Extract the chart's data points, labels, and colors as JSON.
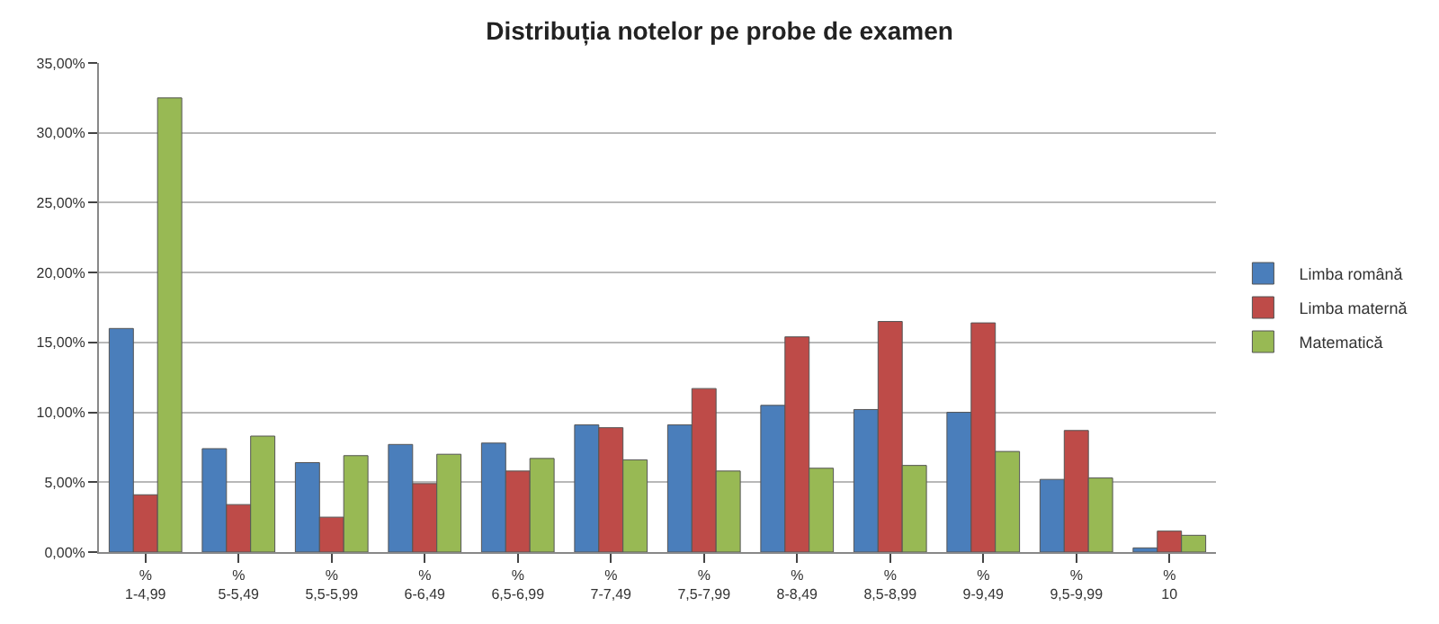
{
  "chart_data": {
    "type": "bar",
    "title": "Distribuția notelor pe probe de examen",
    "categories": [
      "%\n1-4,99",
      "%\n5-5,49",
      "%\n5,5-5,99",
      "%\n6-6,49",
      "%\n6,5-6,99",
      "%\n7-7,49",
      "%\n7,5-7,99",
      "%\n8-8,49",
      "%\n8,5-8,99",
      "%\n9-9,49",
      "%\n9,5-9,99",
      "%\n10"
    ],
    "series": [
      {
        "name": "Limba română",
        "color": "#4a7ebb",
        "values": [
          16.0,
          7.4,
          6.4,
          7.7,
          7.8,
          9.1,
          9.1,
          10.5,
          10.2,
          10.0,
          5.2,
          0.3
        ]
      },
      {
        "name": "Limba maternă",
        "color": "#be4b48",
        "values": [
          4.1,
          3.4,
          2.5,
          4.9,
          5.8,
          8.9,
          11.7,
          15.4,
          16.5,
          16.4,
          8.7,
          1.5
        ]
      },
      {
        "name": "Matematică",
        "color": "#98b954",
        "values": [
          32.5,
          8.3,
          6.9,
          7.0,
          6.7,
          6.6,
          5.8,
          6.0,
          6.2,
          7.2,
          5.3,
          1.2
        ]
      }
    ],
    "ylim": [
      0,
      35
    ],
    "yticks": [
      {
        "value": 0,
        "label": "0,00%"
      },
      {
        "value": 5,
        "label": "5,00%"
      },
      {
        "value": 10,
        "label": "10,00%"
      },
      {
        "value": 15,
        "label": "15,00%"
      },
      {
        "value": 20,
        "label": "20,00%"
      },
      {
        "value": 25,
        "label": "25,00%"
      },
      {
        "value": 30,
        "label": "30,00%"
      },
      {
        "value": 35,
        "label": "35,00%"
      }
    ],
    "grid": "y",
    "legend": "right"
  }
}
